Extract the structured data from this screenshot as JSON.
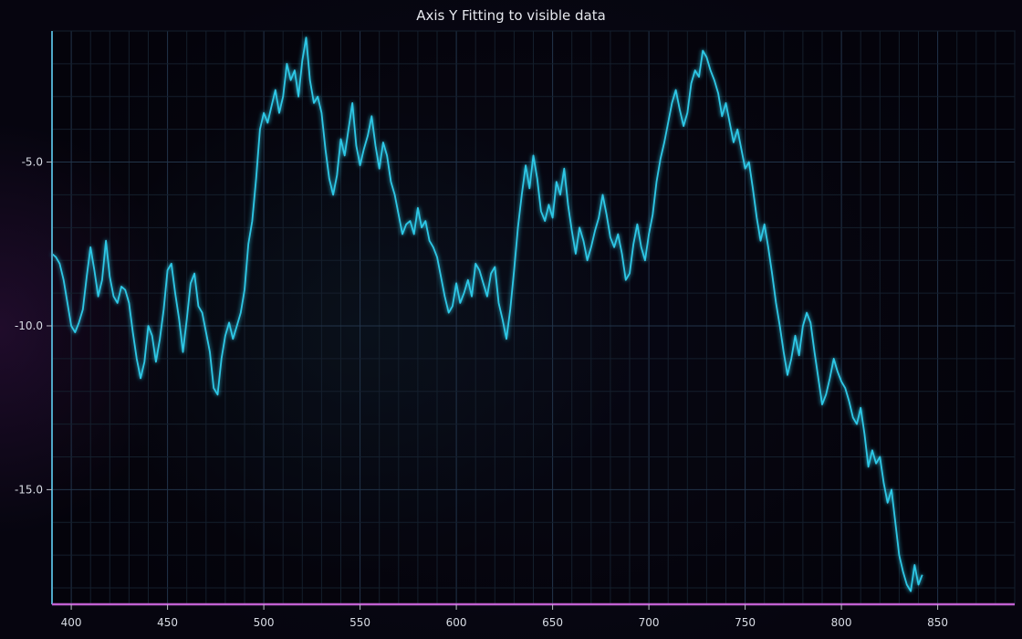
{
  "chart_data": {
    "type": "line",
    "title": "Axis Y Fitting to visible data",
    "xlabel": "",
    "ylabel": "",
    "xlim": [
      390,
      890
    ],
    "ylim": [
      -18.5,
      -1
    ],
    "x_ticks": [
      400,
      450,
      500,
      550,
      600,
      650,
      700,
      750,
      800,
      850
    ],
    "y_ticks": [
      -5.0,
      -10.0,
      -15.0
    ],
    "grid": true,
    "legend": "none",
    "colors": {
      "line": "#2ec8e6",
      "axis_y": "#4fa8c8",
      "axis_x": "#c060d0",
      "grid": "#1c2a3a"
    },
    "series": [
      {
        "x_start": 390,
        "x_step": 2,
        "values": [
          -7.8,
          -7.9,
          -8.1,
          -8.6,
          -9.3,
          -10.0,
          -10.2,
          -9.9,
          -9.5,
          -8.5,
          -7.6,
          -8.3,
          -9.1,
          -8.6,
          -7.4,
          -8.5,
          -9.1,
          -9.3,
          -8.8,
          -8.9,
          -9.3,
          -10.2,
          -11.0,
          -11.6,
          -11.1,
          -10.0,
          -10.3,
          -11.1,
          -10.4,
          -9.5,
          -8.3,
          -8.1,
          -9.0,
          -9.8,
          -10.8,
          -9.8,
          -8.7,
          -8.4,
          -9.4,
          -9.6,
          -10.2,
          -10.8,
          -11.9,
          -12.1,
          -11.0,
          -10.3,
          -9.9,
          -10.4,
          -10.0,
          -9.6,
          -8.9,
          -7.5,
          -6.8,
          -5.5,
          -4.0,
          -3.5,
          -3.8,
          -3.3,
          -2.8,
          -3.5,
          -3.0,
          -2.0,
          -2.5,
          -2.2,
          -3.0,
          -1.9,
          -1.2,
          -2.5,
          -3.2,
          -3.0,
          -3.5,
          -4.6,
          -5.5,
          -6.0,
          -5.4,
          -4.3,
          -4.8,
          -4.0,
          -3.2,
          -4.5,
          -5.1,
          -4.6,
          -4.2,
          -3.6,
          -4.5,
          -5.2,
          -4.4,
          -4.8,
          -5.6,
          -6.0,
          -6.6,
          -7.2,
          -6.9,
          -6.8,
          -7.2,
          -6.4,
          -7.0,
          -6.8,
          -7.4,
          -7.6,
          -7.9,
          -8.5,
          -9.1,
          -9.6,
          -9.4,
          -8.7,
          -9.3,
          -9.0,
          -8.6,
          -9.1,
          -8.1,
          -8.3,
          -8.7,
          -9.1,
          -8.4,
          -8.2,
          -9.3,
          -9.8,
          -10.4,
          -9.5,
          -8.3,
          -7.0,
          -6.0,
          -5.1,
          -5.8,
          -4.8,
          -5.5,
          -6.5,
          -6.8,
          -6.3,
          -6.7,
          -5.6,
          -6.0,
          -5.2,
          -6.3,
          -7.1,
          -7.8,
          -7.0,
          -7.4,
          -8.0,
          -7.6,
          -7.1,
          -6.7,
          -6.0,
          -6.6,
          -7.3,
          -7.6,
          -7.2,
          -7.8,
          -8.6,
          -8.4,
          -7.5,
          -6.9,
          -7.6,
          -8.0,
          -7.2,
          -6.6,
          -5.6,
          -4.9,
          -4.4,
          -3.8,
          -3.2,
          -2.8,
          -3.4,
          -3.9,
          -3.5,
          -2.6,
          -2.2,
          -2.4,
          -1.6,
          -1.8,
          -2.2,
          -2.5,
          -2.9,
          -3.6,
          -3.2,
          -3.8,
          -4.4,
          -4.0,
          -4.6,
          -5.2,
          -5.0,
          -5.8,
          -6.7,
          -7.4,
          -6.9,
          -7.6,
          -8.4,
          -9.3,
          -10.0,
          -10.8,
          -11.5,
          -11.0,
          -10.3,
          -10.9,
          -10.0,
          -9.6,
          -9.9,
          -10.8,
          -11.6,
          -12.4,
          -12.1,
          -11.6,
          -11.0,
          -11.4,
          -11.7,
          -11.9,
          -12.3,
          -12.8,
          -13.0,
          -12.5,
          -13.3,
          -14.3,
          -13.8,
          -14.2,
          -14.0,
          -14.8,
          -15.4,
          -15.0,
          -16.0,
          -17.0,
          -17.5,
          -17.9,
          -18.1,
          -17.3,
          -17.9,
          -17.6
        ]
      }
    ]
  }
}
